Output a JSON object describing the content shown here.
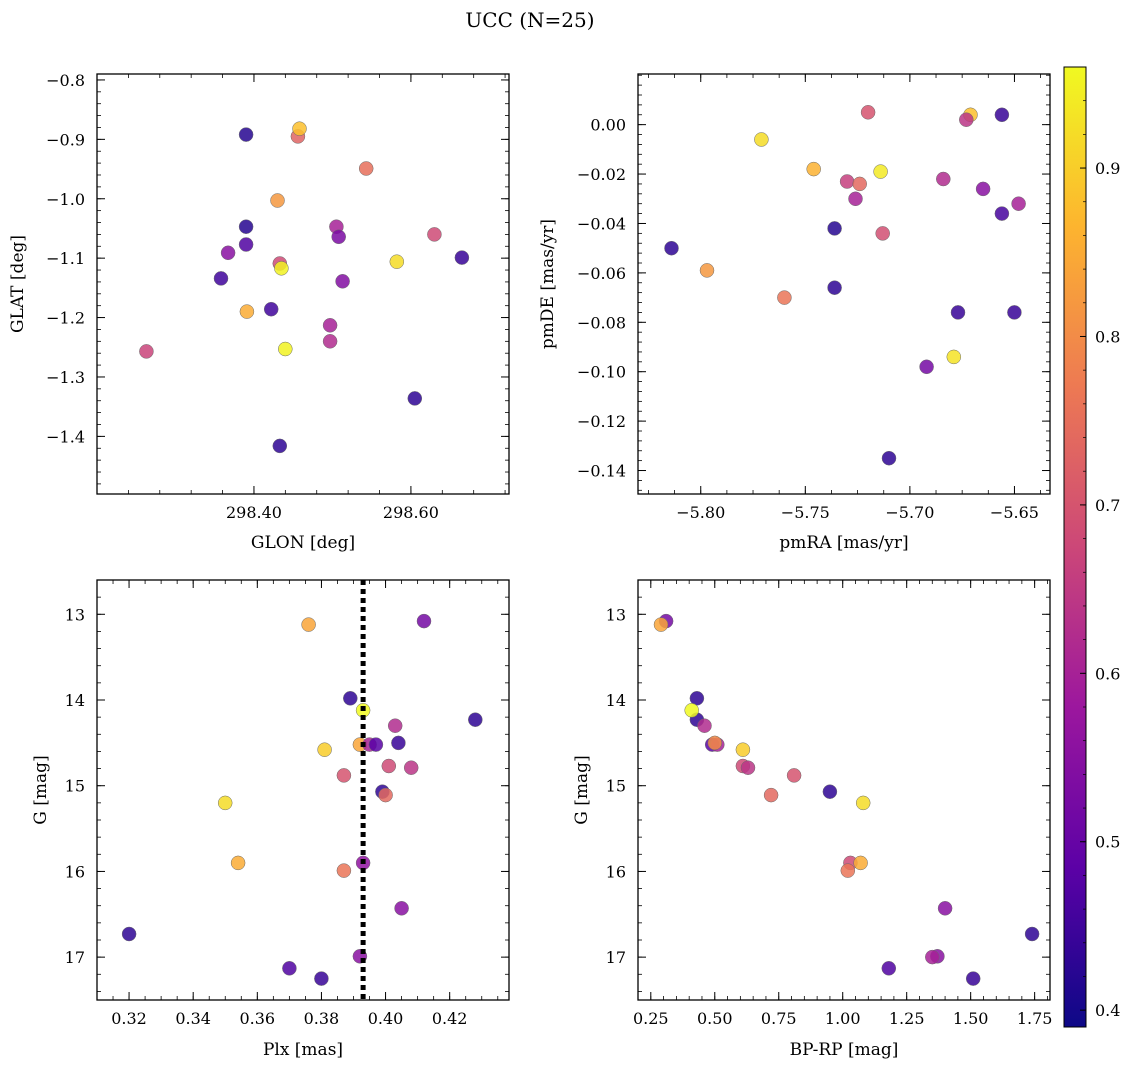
{
  "figure": {
    "suptitle": "UCC (N=25)"
  },
  "colorbar": {
    "range": [
      0.39,
      0.96
    ],
    "ticks": [
      0.4,
      0.5,
      0.6,
      0.7,
      0.8,
      0.9
    ],
    "colormap": "plasma",
    "colormap_stops": [
      "#0d0887",
      "#5c01a6",
      "#9c179e",
      "#cc4778",
      "#ed7953",
      "#fdb42f",
      "#f0f921"
    ]
  },
  "chart_data": [
    {
      "id": "radec",
      "type": "scatter",
      "xlabel": "GLON [deg]",
      "ylabel": "GLAT [deg]",
      "xlim": [
        298.2,
        298.725
      ],
      "ylim": [
        -1.497,
        -0.79
      ],
      "xticks": [
        298.4,
        298.6
      ],
      "yticks": [
        -1.4,
        -1.3,
        -1.2,
        -1.1,
        -1.0,
        -0.9,
        -0.8
      ],
      "x": [
        298.39,
        298.456,
        298.458,
        298.543,
        298.43,
        298.39,
        298.505,
        298.39,
        298.508,
        298.63,
        298.367,
        298.433,
        298.665,
        298.582,
        298.435,
        298.513,
        298.358,
        298.391,
        298.422,
        298.44,
        298.497,
        298.497,
        298.263,
        298.605,
        298.433
      ],
      "y": [
        -0.892,
        -0.895,
        -0.882,
        -0.949,
        -1.003,
        -1.047,
        -1.047,
        -1.077,
        -1.064,
        -1.06,
        -1.091,
        -1.109,
        -1.099,
        -1.106,
        -1.117,
        -1.139,
        -1.134,
        -1.19,
        -1.186,
        -1.253,
        -1.213,
        -1.24,
        -1.257,
        -1.336,
        -1.416
      ],
      "c": [
        0.42,
        0.73,
        0.88,
        0.75,
        0.82,
        0.42,
        0.6,
        0.47,
        0.53,
        0.68,
        0.55,
        0.68,
        0.44,
        0.92,
        0.95,
        0.54,
        0.45,
        0.85,
        0.45,
        0.95,
        0.6,
        0.62,
        0.67,
        0.43,
        0.43
      ]
    },
    {
      "id": "pm",
      "type": "scatter",
      "xlabel": "pmRA [mas/yr]",
      "ylabel": "pmDE [mas/yr]",
      "xlim": [
        -5.83,
        -5.633
      ],
      "ylim": [
        -0.1495,
        0.0205
      ],
      "xticks": [
        -5.8,
        -5.75,
        -5.7,
        -5.65
      ],
      "yticks": [
        -0.14,
        -0.12,
        -0.1,
        -0.08,
        -0.06,
        -0.04,
        -0.02,
        0.0
      ],
      "x": [
        -5.72,
        -5.671,
        -5.656,
        -5.673,
        -5.771,
        -5.746,
        -5.714,
        -5.73,
        -5.724,
        -5.684,
        -5.665,
        -5.726,
        -5.656,
        -5.648,
        -5.814,
        -5.736,
        -5.713,
        -5.797,
        -5.76,
        -5.736,
        -5.677,
        -5.65,
        -5.679,
        -5.692,
        -5.71
      ],
      "y": [
        0.005,
        0.004,
        0.004,
        0.002,
        -0.006,
        -0.018,
        -0.019,
        -0.023,
        -0.024,
        -0.022,
        -0.026,
        -0.03,
        -0.036,
        -0.032,
        -0.05,
        -0.042,
        -0.044,
        -0.059,
        -0.07,
        -0.066,
        -0.076,
        -0.076,
        -0.094,
        -0.098,
        -0.135
      ],
      "c": [
        0.7,
        0.88,
        0.44,
        0.64,
        0.92,
        0.86,
        0.94,
        0.66,
        0.74,
        0.62,
        0.55,
        0.6,
        0.46,
        0.6,
        0.43,
        0.42,
        0.69,
        0.82,
        0.76,
        0.43,
        0.44,
        0.44,
        0.93,
        0.52,
        0.43
      ]
    },
    {
      "id": "plx",
      "type": "scatter",
      "xlabel": "Plx [mas]",
      "ylabel": "G [mag]",
      "xlim": [
        0.31,
        0.4385
      ],
      "ylim": [
        17.5,
        12.6
      ],
      "xticks": [
        0.32,
        0.34,
        0.36,
        0.38,
        0.4,
        0.42
      ],
      "yticks": [
        13,
        14,
        15,
        16,
        17
      ],
      "vline": 0.393,
      "x": [
        0.376,
        0.412,
        0.389,
        0.393,
        0.428,
        0.381,
        0.392,
        0.395,
        0.397,
        0.404,
        0.403,
        0.387,
        0.401,
        0.408,
        0.399,
        0.35,
        0.4,
        0.354,
        0.387,
        0.393,
        0.405,
        0.32,
        0.37,
        0.38,
        0.392
      ],
      "y": [
        13.12,
        13.08,
        13.98,
        14.12,
        14.23,
        14.58,
        14.52,
        14.52,
        14.52,
        14.5,
        14.3,
        14.88,
        14.77,
        14.79,
        15.07,
        15.2,
        15.11,
        15.9,
        15.99,
        15.9,
        16.43,
        16.73,
        17.13,
        17.25,
        16.99
      ],
      "c": [
        0.84,
        0.52,
        0.43,
        0.96,
        0.43,
        0.9,
        0.84,
        0.6,
        0.48,
        0.44,
        0.62,
        0.7,
        0.68,
        0.64,
        0.43,
        0.92,
        0.74,
        0.85,
        0.76,
        0.56,
        0.55,
        0.43,
        0.47,
        0.44,
        0.55
      ]
    },
    {
      "id": "cmd",
      "type": "scatter",
      "xlabel": "BP-RP [mag]",
      "ylabel": "G [mag]",
      "xlim": [
        0.2,
        1.81
      ],
      "ylim": [
        17.5,
        12.6
      ],
      "xticks": [
        0.25,
        0.5,
        0.75,
        1.0,
        1.25,
        1.5,
        1.75
      ],
      "yticks": [
        13,
        14,
        15,
        16,
        17
      ],
      "x": [
        0.31,
        0.29,
        0.43,
        0.43,
        0.46,
        0.41,
        0.49,
        0.51,
        0.5,
        0.61,
        0.61,
        0.63,
        0.81,
        0.72,
        0.95,
        1.08,
        1.03,
        1.07,
        1.02,
        1.4,
        1.37,
        1.74,
        1.18,
        1.51,
        1.35
      ],
      "y": [
        13.08,
        13.12,
        13.98,
        14.23,
        14.3,
        14.12,
        14.52,
        14.52,
        14.5,
        14.58,
        14.77,
        14.79,
        14.88,
        15.11,
        15.07,
        15.2,
        15.9,
        15.9,
        15.99,
        16.43,
        16.99,
        16.73,
        17.13,
        17.25,
        17.0
      ],
      "c": [
        0.52,
        0.84,
        0.43,
        0.43,
        0.62,
        0.96,
        0.48,
        0.6,
        0.8,
        0.9,
        0.68,
        0.64,
        0.7,
        0.74,
        0.43,
        0.92,
        0.68,
        0.85,
        0.76,
        0.55,
        0.55,
        0.43,
        0.47,
        0.44,
        0.6
      ]
    }
  ]
}
